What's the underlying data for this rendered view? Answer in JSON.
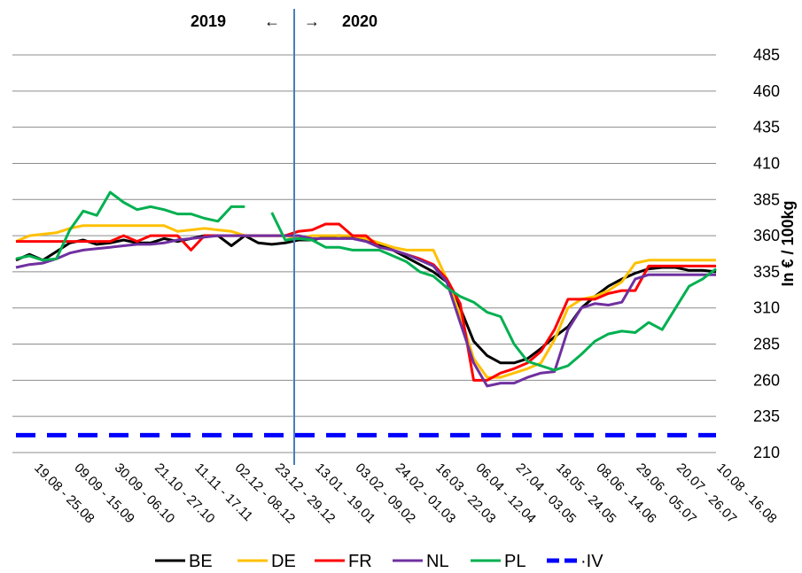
{
  "chart_data": {
    "type": "line",
    "ylabel": "In € / 100kg",
    "ylim": [
      210,
      485
    ],
    "yticks": [
      210,
      235,
      260,
      285,
      310,
      335,
      360,
      385,
      410,
      435,
      460,
      485
    ],
    "grid": true,
    "legend_position": "bottom",
    "year_labels": {
      "left": "2019",
      "arrow_left": "←",
      "arrow_right": "→",
      "right": "2020"
    },
    "x_tick_labels": [
      "19.08 - 25.08",
      "09.09 - 15.09",
      "30.09 - 06.10",
      "21.10 - 27.10",
      "11.11 - 17.11",
      "02.12 - 08.12",
      "23.12 - 29.12",
      "13.01 - 19.01",
      "03.02 - 09.02",
      "24.02 - 01.03",
      "16.03 - 22.03",
      "06.04 - 12.04",
      "27.04 - 03.05",
      "18.05 - 24.05",
      "08.06 - 14.06",
      "29.06 - 05.07",
      "20.07 - 26.07",
      "10.08 - 16.08"
    ],
    "series": [
      {
        "name": "BE",
        "color": "#000000",
        "style": "solid",
        "points": [
          [
            0,
            343
          ],
          [
            1,
            347
          ],
          [
            2,
            343
          ],
          [
            3,
            349
          ],
          [
            4,
            355
          ],
          [
            5,
            357
          ],
          [
            6,
            354
          ],
          [
            7,
            355
          ],
          [
            8,
            357
          ],
          [
            9,
            355
          ],
          [
            10,
            355
          ],
          [
            11,
            358
          ],
          [
            12,
            356
          ],
          [
            13,
            358
          ],
          [
            14,
            360
          ],
          [
            15,
            360
          ],
          [
            16,
            353
          ],
          [
            17,
            360
          ],
          [
            18,
            355
          ],
          [
            19,
            354
          ],
          [
            20,
            355
          ],
          [
            21,
            357
          ],
          [
            22,
            357
          ],
          [
            23,
            359
          ],
          [
            24,
            360
          ],
          [
            25,
            359
          ],
          [
            26,
            357
          ],
          [
            27,
            354
          ],
          [
            28,
            350
          ],
          [
            29,
            345
          ],
          [
            30,
            340
          ],
          [
            31,
            335
          ],
          [
            32,
            328
          ],
          [
            33,
            310
          ],
          [
            34,
            287
          ],
          [
            35,
            277
          ],
          [
            36,
            272
          ],
          [
            37,
            272
          ],
          [
            38,
            275
          ],
          [
            39,
            282
          ],
          [
            40,
            290
          ],
          [
            41,
            297
          ],
          [
            42,
            310
          ],
          [
            43,
            318
          ],
          [
            44,
            325
          ],
          [
            45,
            330
          ],
          [
            46,
            334
          ],
          [
            47,
            337
          ],
          [
            48,
            338
          ],
          [
            49,
            338
          ],
          [
            50,
            336
          ],
          [
            51,
            336
          ],
          [
            52,
            335
          ]
        ]
      },
      {
        "name": "DE",
        "color": "#ffc000",
        "style": "solid",
        "points": [
          [
            0,
            356
          ],
          [
            1,
            360
          ],
          [
            3,
            362
          ],
          [
            4,
            365
          ],
          [
            5,
            367
          ],
          [
            6,
            367
          ],
          [
            7,
            367
          ],
          [
            8,
            367
          ],
          [
            9,
            367
          ],
          [
            10,
            367
          ],
          [
            11,
            367
          ],
          [
            12,
            363
          ],
          [
            13,
            364
          ],
          [
            14,
            365
          ],
          [
            15,
            364
          ],
          [
            16,
            363
          ],
          [
            17,
            360
          ],
          [
            18,
            360
          ],
          [
            19,
            360
          ],
          [
            20,
            360
          ],
          [
            21,
            358
          ],
          [
            22,
            360
          ],
          [
            23,
            360
          ],
          [
            24,
            360
          ],
          [
            25,
            360
          ],
          [
            26,
            358
          ],
          [
            27,
            355
          ],
          [
            28,
            352
          ],
          [
            29,
            350
          ],
          [
            30,
            350
          ],
          [
            31,
            350
          ],
          [
            32,
            330
          ],
          [
            33,
            305
          ],
          [
            34,
            275
          ],
          [
            35,
            262
          ],
          [
            36,
            262
          ],
          [
            37,
            265
          ],
          [
            38,
            268
          ],
          [
            39,
            272
          ],
          [
            40,
            288
          ],
          [
            41,
            310
          ],
          [
            42,
            316
          ],
          [
            43,
            318
          ],
          [
            44,
            322
          ],
          [
            45,
            328
          ],
          [
            46,
            341
          ],
          [
            47,
            343
          ],
          [
            48,
            343
          ],
          [
            49,
            343
          ],
          [
            50,
            343
          ],
          [
            51,
            343
          ],
          [
            52,
            343
          ]
        ]
      },
      {
        "name": "FR",
        "color": "#ff0000",
        "style": "solid",
        "points": [
          [
            0,
            356
          ],
          [
            1,
            356
          ],
          [
            2,
            356
          ],
          [
            3,
            356
          ],
          [
            4,
            356
          ],
          [
            5,
            356
          ],
          [
            6,
            356
          ],
          [
            7,
            356
          ],
          [
            8,
            360
          ],
          [
            9,
            356
          ],
          [
            10,
            360
          ],
          [
            11,
            360
          ],
          [
            12,
            360
          ],
          [
            13,
            350
          ],
          [
            14,
            360
          ],
          [
            15,
            360
          ],
          [
            16,
            360
          ],
          [
            17,
            360
          ],
          [
            18,
            360
          ],
          [
            19,
            360
          ],
          [
            20,
            360
          ],
          [
            21,
            363
          ],
          [
            22,
            364
          ],
          [
            23,
            368
          ],
          [
            24,
            368
          ],
          [
            25,
            360
          ],
          [
            26,
            360
          ],
          [
            27,
            352
          ],
          [
            28,
            350
          ],
          [
            29,
            347
          ],
          [
            30,
            344
          ],
          [
            31,
            340
          ],
          [
            32,
            330
          ],
          [
            33,
            313
          ],
          [
            34,
            260
          ],
          [
            35,
            260
          ],
          [
            36,
            265
          ],
          [
            37,
            268
          ],
          [
            38,
            272
          ],
          [
            39,
            280
          ],
          [
            40,
            295
          ],
          [
            41,
            316
          ],
          [
            42,
            316
          ],
          [
            43,
            316
          ],
          [
            44,
            320
          ],
          [
            45,
            322
          ],
          [
            46,
            322
          ],
          [
            47,
            339
          ],
          [
            48,
            339
          ],
          [
            49,
            339
          ],
          [
            50,
            339
          ],
          [
            51,
            339
          ],
          [
            52,
            339
          ]
        ]
      },
      {
        "name": "NL",
        "color": "#7030a0",
        "style": "solid",
        "points": [
          [
            0,
            338
          ],
          [
            1,
            340
          ],
          [
            2,
            341
          ],
          [
            3,
            344
          ],
          [
            4,
            348
          ],
          [
            5,
            350
          ],
          [
            6,
            351
          ],
          [
            7,
            352
          ],
          [
            8,
            353
          ],
          [
            9,
            354
          ],
          [
            10,
            354
          ],
          [
            11,
            355
          ],
          [
            12,
            357
          ],
          [
            13,
            358
          ],
          [
            14,
            359
          ],
          [
            15,
            360
          ],
          [
            16,
            360
          ],
          [
            17,
            360
          ],
          [
            18,
            360
          ],
          [
            19,
            360
          ],
          [
            20,
            360
          ],
          [
            21,
            360
          ],
          [
            22,
            358
          ],
          [
            23,
            358
          ],
          [
            24,
            358
          ],
          [
            25,
            358
          ],
          [
            26,
            356
          ],
          [
            27,
            352
          ],
          [
            28,
            350
          ],
          [
            29,
            347
          ],
          [
            30,
            343
          ],
          [
            31,
            339
          ],
          [
            32,
            328
          ],
          [
            33,
            300
          ],
          [
            34,
            272
          ],
          [
            35,
            256
          ],
          [
            36,
            258
          ],
          [
            37,
            258
          ],
          [
            38,
            262
          ],
          [
            39,
            265
          ],
          [
            40,
            266
          ],
          [
            41,
            295
          ],
          [
            42,
            310
          ],
          [
            43,
            313
          ],
          [
            44,
            312
          ],
          [
            45,
            314
          ],
          [
            46,
            330
          ],
          [
            47,
            333
          ],
          [
            48,
            333
          ],
          [
            49,
            333
          ],
          [
            50,
            333
          ],
          [
            51,
            333
          ],
          [
            52,
            333
          ]
        ]
      },
      {
        "name": "PL",
        "color": "#00b050",
        "style": "solid",
        "points": [
          [
            0,
            344
          ],
          [
            1,
            346
          ],
          [
            2,
            343
          ],
          [
            3,
            344
          ],
          [
            4,
            364
          ],
          [
            5,
            377
          ],
          [
            6,
            374
          ],
          [
            7,
            390
          ],
          [
            8,
            383
          ],
          [
            9,
            378
          ],
          [
            10,
            380
          ],
          [
            11,
            378
          ],
          [
            12,
            375
          ],
          [
            13,
            375
          ],
          [
            14,
            372
          ],
          [
            15,
            370
          ],
          [
            16,
            380
          ],
          [
            17,
            380
          ],
          null,
          [
            19,
            376
          ],
          [
            20,
            357
          ],
          [
            21,
            358
          ],
          [
            22,
            357
          ],
          [
            23,
            352
          ],
          [
            24,
            352
          ],
          [
            25,
            350
          ],
          [
            26,
            350
          ],
          [
            27,
            350
          ],
          [
            28,
            346
          ],
          [
            29,
            342
          ],
          [
            30,
            335
          ],
          [
            31,
            332
          ],
          [
            32,
            324
          ],
          [
            33,
            318
          ],
          [
            34,
            314
          ],
          [
            35,
            307
          ],
          [
            36,
            304
          ],
          [
            37,
            285
          ],
          [
            38,
            273
          ],
          [
            39,
            270
          ],
          [
            40,
            267
          ],
          [
            41,
            270
          ],
          [
            42,
            278
          ],
          [
            43,
            287
          ],
          [
            44,
            292
          ],
          [
            45,
            294
          ],
          [
            46,
            293
          ],
          [
            47,
            300
          ],
          [
            48,
            295
          ],
          [
            49,
            310
          ],
          [
            50,
            325
          ],
          [
            51,
            330
          ],
          [
            52,
            337
          ]
        ]
      },
      {
        "name": "·IV",
        "color": "#0000ff",
        "style": "dashed",
        "points": [
          [
            0,
            222
          ],
          [
            52,
            222
          ]
        ]
      }
    ]
  }
}
